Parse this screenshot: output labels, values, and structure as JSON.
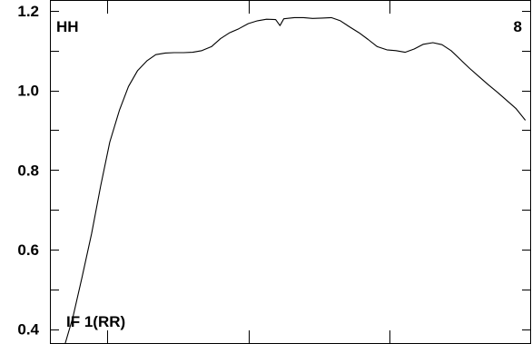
{
  "chart_data": {
    "type": "line",
    "title": "",
    "xlabel": "",
    "ylabel": "",
    "ylim": [
      0.365,
      1.225
    ],
    "xlim": [
      0,
      100
    ],
    "y_ticks": [
      0.4,
      0.6,
      0.8,
      1.0,
      1.2
    ],
    "y_tick_labels": [
      "0.4",
      "0.6",
      "0.8",
      "1.0",
      "1.2"
    ],
    "y_minor_ticks": [
      0.5,
      0.7,
      0.9,
      1.1
    ],
    "x_ticks": [
      11.7,
      41.2,
      70.7
    ],
    "grid": false,
    "annotations": {
      "top_left": "HH",
      "top_right": "8",
      "bottom_left": "IF 1(RR)"
    },
    "series": [
      {
        "x": [
          2.9,
          4.6,
          6.5,
          8.5,
          10.4,
          12.3,
          14.3,
          16.2,
          18.1,
          20.1,
          21.9,
          23.9,
          25.7,
          27.7,
          29.6,
          31.5,
          33.5,
          35.4,
          37.3,
          39.2,
          41.2,
          43.1,
          45.0,
          46.9,
          47.8,
          48.6,
          50.8,
          52.7,
          54.6,
          56.6,
          58.5,
          60.4,
          62.3,
          64.3,
          66.2,
          68.1,
          70.1,
          72.0,
          73.9,
          75.8,
          77.7,
          79.7,
          81.6,
          83.5,
          85.4,
          87.4,
          89.3,
          91.2,
          93.2,
          95.1,
          97.0,
          99.0
        ],
        "y": [
          0.36,
          0.43,
          0.53,
          0.64,
          0.76,
          0.87,
          0.95,
          1.01,
          1.05,
          1.075,
          1.09,
          1.094,
          1.095,
          1.095,
          1.096,
          1.1,
          1.11,
          1.13,
          1.145,
          1.155,
          1.168,
          1.175,
          1.179,
          1.178,
          1.163,
          1.18,
          1.183,
          1.183,
          1.181,
          1.182,
          1.183,
          1.175,
          1.16,
          1.145,
          1.128,
          1.11,
          1.102,
          1.1,
          1.096,
          1.104,
          1.116,
          1.12,
          1.115,
          1.1,
          1.078,
          1.055,
          1.035,
          1.015,
          0.995,
          0.975,
          0.955,
          0.925
        ]
      }
    ]
  }
}
